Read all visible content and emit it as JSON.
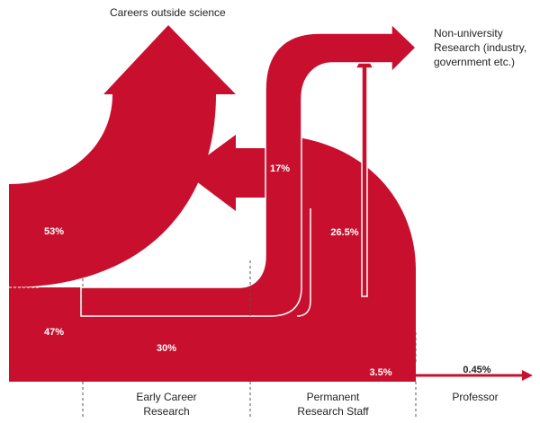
{
  "destinations": {
    "careers_outside_science": "Careers outside science",
    "non_university": [
      "Non-university",
      "Research (industry,",
      "government etc.)"
    ]
  },
  "flows": [
    "53%",
    "47%",
    "30%",
    "17%",
    "26.5%",
    "3.5%",
    "0.45%"
  ],
  "stages": [
    [
      "Early Career",
      "Research"
    ],
    [
      "Permanent",
      "Research Staff"
    ],
    [
      "Professor"
    ]
  ]
}
